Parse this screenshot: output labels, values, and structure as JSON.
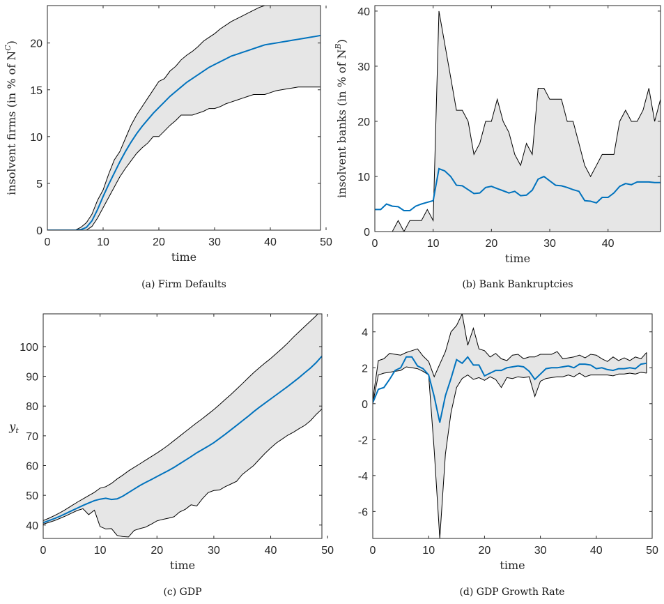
{
  "colors": {
    "mean": "#0072BD",
    "band_fill": "#e6e6e6",
    "band_edge": "#000000"
  },
  "chart_data": [
    {
      "type": "area",
      "caption": "(a) Firm Defaults",
      "xlabel": "time",
      "ylabel": "insolvent firms (in % of N",
      "ylabel_sup": "C",
      "ylabel_tail": ")",
      "xlim": [
        0,
        49
      ],
      "ylim": [
        0,
        24
      ],
      "xticks": [
        0,
        10,
        20,
        30,
        40,
        50
      ],
      "yticks": [
        0,
        5,
        10,
        15,
        20
      ],
      "x": [
        0,
        1,
        2,
        3,
        4,
        5,
        6,
        7,
        8,
        9,
        10,
        11,
        12,
        13,
        14,
        15,
        16,
        17,
        18,
        19,
        20,
        21,
        22,
        23,
        24,
        25,
        26,
        27,
        28,
        29,
        30,
        31,
        32,
        33,
        34,
        35,
        36,
        37,
        38,
        39,
        40,
        41,
        42,
        43,
        44,
        45,
        46,
        47,
        48,
        49
      ],
      "series": [
        {
          "role": "upper",
          "values": [
            0,
            0,
            0,
            0,
            0,
            0,
            0.3,
            0.8,
            1.7,
            3.2,
            4.3,
            6,
            7.5,
            8.4,
            9.8,
            11.2,
            12.3,
            13.2,
            14.1,
            15,
            15.9,
            16.2,
            17,
            17.5,
            18.2,
            18.7,
            19.1,
            19.6,
            20.2,
            20.6,
            21,
            21.5,
            21.9,
            22.3,
            22.6,
            22.9,
            23.2,
            23.5,
            23.8,
            24,
            24,
            24,
            24,
            24,
            24,
            24,
            24,
            24,
            24,
            24
          ]
        },
        {
          "role": "mean",
          "values": [
            0,
            0,
            0,
            0,
            0,
            0,
            0.05,
            0.3,
            1,
            2.2,
            3.6,
            4.9,
            6.1,
            7.3,
            8.4,
            9.4,
            10.3,
            11.1,
            11.8,
            12.5,
            13.1,
            13.7,
            14.3,
            14.8,
            15.3,
            15.8,
            16.2,
            16.6,
            17,
            17.4,
            17.7,
            18,
            18.3,
            18.6,
            18.8,
            19,
            19.2,
            19.4,
            19.6,
            19.8,
            19.9,
            20,
            20.1,
            20.2,
            20.3,
            20.4,
            20.5,
            20.6,
            20.7,
            20.8
          ]
        },
        {
          "role": "lower",
          "values": [
            0,
            0,
            0,
            0,
            0,
            0,
            0,
            0,
            0.4,
            1.3,
            2.4,
            3.5,
            4.6,
            5.7,
            6.6,
            7.4,
            8.2,
            8.8,
            9.3,
            10,
            10,
            10.6,
            11.2,
            11.7,
            12.3,
            12.3,
            12.3,
            12.5,
            12.7,
            13,
            13,
            13.2,
            13.5,
            13.7,
            13.9,
            14.1,
            14.3,
            14.5,
            14.5,
            14.5,
            14.7,
            14.9,
            15,
            15.1,
            15.2,
            15.3,
            15.3,
            15.3,
            15.3,
            15.3
          ]
        }
      ]
    },
    {
      "type": "area",
      "caption": "(b) Bank Bankruptcies",
      "xlabel": "time",
      "ylabel": "insolvent banks (in % of N",
      "ylabel_sup": "B",
      "ylabel_tail": ")",
      "xlim": [
        0,
        49
      ],
      "ylim": [
        0,
        41
      ],
      "xticks": [
        0,
        10,
        20,
        30,
        40
      ],
      "yticks": [
        0,
        10,
        20,
        30,
        40
      ],
      "x": [
        0,
        1,
        2,
        3,
        4,
        5,
        6,
        7,
        8,
        9,
        10,
        11,
        12,
        13,
        14,
        15,
        16,
        17,
        18,
        19,
        20,
        21,
        22,
        23,
        24,
        25,
        26,
        27,
        28,
        29,
        30,
        31,
        32,
        33,
        34,
        35,
        36,
        37,
        38,
        39,
        40,
        41,
        42,
        43,
        44,
        45,
        46,
        47,
        48,
        49
      ],
      "series": [
        {
          "role": "upper",
          "values": [
            0,
            0,
            0,
            0,
            2,
            0,
            2,
            2,
            2,
            4,
            2,
            40,
            34,
            28,
            22,
            22,
            20,
            14,
            16,
            20,
            20,
            24,
            20,
            18,
            14,
            12,
            16,
            14,
            26,
            26,
            24,
            24,
            24,
            20,
            20,
            16,
            12,
            10,
            12,
            14,
            14,
            14,
            20,
            22,
            20,
            20,
            22,
            26,
            20,
            24
          ]
        },
        {
          "role": "mean",
          "values": [
            4,
            4,
            5,
            4.6,
            4.5,
            3.8,
            3.8,
            4.6,
            5,
            5.3,
            5.6,
            11.4,
            11,
            10,
            8.4,
            8.3,
            7.6,
            6.9,
            7,
            8,
            8.2,
            7.8,
            7.4,
            7,
            7.3,
            6.5,
            6.6,
            7.5,
            9.5,
            10,
            9.2,
            8.4,
            8.3,
            8,
            7.6,
            7.3,
            5.6,
            5.5,
            5.2,
            6.2,
            6.2,
            7,
            8.2,
            8.7,
            8.5,
            9,
            9,
            9,
            8.9,
            8.9
          ]
        },
        {
          "role": "lower",
          "values": [
            0,
            0,
            0,
            0,
            0,
            0,
            0,
            0,
            0,
            0,
            0,
            0,
            0,
            0,
            0,
            0,
            0,
            0,
            0,
            0,
            0,
            0,
            0,
            0,
            0,
            0,
            0,
            0,
            0,
            0,
            0,
            0,
            0,
            0,
            0,
            0,
            0,
            0,
            0,
            0,
            0,
            0,
            0,
            0,
            0,
            0,
            0,
            0,
            0,
            0
          ]
        }
      ]
    },
    {
      "type": "area",
      "caption": "(c) GDP",
      "xlabel": "time",
      "ylabel": "y",
      "ylabel_sub": "t",
      "xlim": [
        0,
        49
      ],
      "ylim": [
        35.5,
        111
      ],
      "xticks": [
        0,
        10,
        20,
        30,
        40,
        50
      ],
      "yticks": [
        40,
        50,
        60,
        70,
        80,
        90,
        100
      ],
      "x": [
        0,
        1,
        2,
        3,
        4,
        5,
        6,
        7,
        8,
        9,
        10,
        11,
        12,
        13,
        14,
        15,
        16,
        17,
        18,
        19,
        20,
        21,
        22,
        23,
        24,
        25,
        26,
        27,
        28,
        29,
        30,
        31,
        32,
        33,
        34,
        35,
        36,
        37,
        38,
        39,
        40,
        41,
        42,
        43,
        44,
        45,
        46,
        47,
        48,
        49
      ],
      "series": [
        {
          "role": "upper",
          "values": [
            41.5,
            42.3,
            43.2,
            44.2,
            45.3,
            46.5,
            47.7,
            48.8,
            49.9,
            51,
            52.4,
            52.9,
            54,
            55.5,
            56.8,
            58.2,
            59.4,
            60.6,
            61.8,
            63,
            64.2,
            65.5,
            66.9,
            68.4,
            69.9,
            71.4,
            72.9,
            74.4,
            75.8,
            77.3,
            78.8,
            80.5,
            82.2,
            83.9,
            85.7,
            87.5,
            89.4,
            91.2,
            92.9,
            94.5,
            96,
            97.7,
            99.4,
            101.2,
            103.2,
            105,
            106.8,
            108.6,
            110.4,
            112.5
          ]
        },
        {
          "role": "mean",
          "values": [
            40.8,
            41.5,
            42.2,
            43,
            43.9,
            44.8,
            45.7,
            46.6,
            47.4,
            48.2,
            48.7,
            49,
            48.6,
            48.8,
            49.7,
            50.9,
            52.1,
            53.3,
            54.3,
            55.3,
            56.3,
            57.3,
            58.3,
            59.4,
            60.6,
            61.8,
            63,
            64.3,
            65.4,
            66.5,
            67.7,
            69.1,
            70.5,
            72,
            73.5,
            75,
            76.5,
            78.1,
            79.6,
            81,
            82.4,
            83.8,
            85.2,
            86.6,
            88.1,
            89.6,
            91.2,
            92.8,
            94.6,
            96.8
          ]
        },
        {
          "role": "lower",
          "values": [
            40.3,
            40.9,
            41.5,
            42.3,
            43.1,
            44,
            44.9,
            45.5,
            43.5,
            45,
            39.5,
            38.7,
            38.8,
            36.5,
            36.1,
            36,
            38.2,
            38.8,
            39.3,
            40.3,
            41.4,
            41.9,
            42.3,
            42.8,
            44.4,
            45.3,
            46.8,
            46.4,
            48.9,
            50.9,
            51.6,
            51.8,
            52.9,
            53.8,
            54.7,
            57,
            58.5,
            60,
            62.1,
            64.1,
            65.9,
            67.6,
            68.9,
            70.2,
            71.2,
            72.4,
            73.5,
            75.1,
            77.2,
            79
          ]
        }
      ]
    },
    {
      "type": "area",
      "caption": "(d) GDP Growth Rate",
      "xlabel": "time",
      "ylabel": "",
      "xlim": [
        0,
        50
      ],
      "ylim": [
        -7.5,
        5
      ],
      "xticks": [
        0,
        10,
        20,
        30,
        40,
        50
      ],
      "yticks": [
        -6,
        -4,
        -2,
        0,
        2,
        4
      ],
      "x": [
        0,
        1,
        2,
        3,
        4,
        5,
        6,
        7,
        8,
        9,
        10,
        11,
        12,
        13,
        14,
        15,
        16,
        17,
        18,
        19,
        20,
        21,
        22,
        23,
        24,
        25,
        26,
        27,
        28,
        29,
        30,
        31,
        32,
        33,
        34,
        35,
        36,
        37,
        38,
        39,
        40,
        41,
        42,
        43,
        44,
        45,
        46,
        47,
        48,
        49
      ],
      "series": [
        {
          "role": "upper",
          "values": [
            0.2,
            2.4,
            2.5,
            2.8,
            2.75,
            2.7,
            2.85,
            2.95,
            3.05,
            2.65,
            2.35,
            1.5,
            2.2,
            2.9,
            4,
            4.35,
            5,
            3.25,
            4.2,
            3.05,
            2.95,
            2.6,
            2.8,
            2.5,
            2.4,
            2.7,
            2.75,
            2.5,
            2.6,
            2.6,
            2.75,
            2.75,
            2.75,
            2.9,
            2.5,
            2.55,
            2.6,
            2.7,
            2.55,
            2.75,
            2.7,
            2.5,
            2.35,
            2.6,
            2.4,
            2.55,
            2.4,
            2.6,
            2.5,
            2.85
          ]
        },
        {
          "role": "mean",
          "values": [
            0.05,
            0.8,
            0.9,
            1.35,
            1.85,
            2,
            2.6,
            2.6,
            2.1,
            1.95,
            1.6,
            0.4,
            -1.05,
            0.45,
            1.4,
            2.45,
            2.25,
            2.6,
            2.15,
            2.15,
            1.55,
            1.7,
            1.85,
            1.85,
            2,
            2.05,
            2.1,
            2.05,
            1.8,
            1.35,
            1.65,
            1.95,
            2,
            2,
            2.05,
            2.1,
            2,
            2.2,
            2.2,
            2.15,
            1.95,
            2,
            1.9,
            1.85,
            1.95,
            1.95,
            2,
            1.95,
            2.2,
            2.25
          ]
        },
        {
          "role": "lower",
          "values": [
            0,
            1.6,
            1.7,
            1.75,
            1.8,
            1.85,
            2.05,
            2,
            1.95,
            1.8,
            1.6,
            -2.6,
            -7.5,
            -2.8,
            -0.5,
            0.9,
            1.4,
            1.6,
            1.35,
            1.45,
            1.3,
            1.5,
            1.35,
            0.9,
            1.45,
            1.4,
            1.5,
            1.45,
            1.5,
            0.4,
            1.25,
            1.4,
            1.45,
            1.5,
            1.5,
            1.6,
            1.5,
            1.7,
            1.5,
            1.6,
            1.6,
            1.6,
            1.6,
            1.55,
            1.65,
            1.65,
            1.7,
            1.65,
            1.75,
            1.7
          ]
        }
      ]
    }
  ]
}
